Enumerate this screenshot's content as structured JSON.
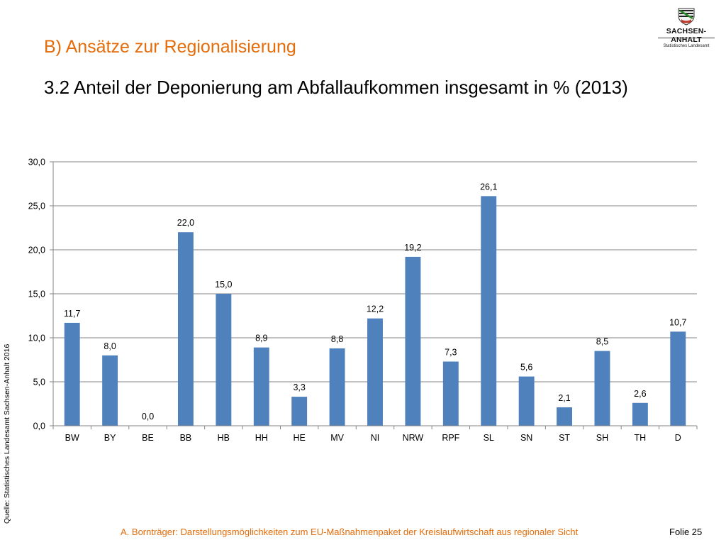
{
  "header": {
    "section_title": "B) Ansätze zur Regionalisierung",
    "slide_title": "3.2 Anteil der Deponierung am Abfallaufkommen insgesamt in % (2013)"
  },
  "logo": {
    "name": "SACHSEN-ANHALT",
    "subtitle": "Statistisches Landesamt",
    "icon": "coat-of-arms-icon"
  },
  "source_note": "Quelle: Statistisches Landesamt Sachsen-Anhalt 2016",
  "footer": {
    "text": "A. Bornträger: Darstellungsmöglichkeiten zum EU-Maßnahmenpaket der Kreislaufwirtschaft aus regionaler Sicht",
    "page": "Folie 25"
  },
  "chart_data": {
    "type": "bar",
    "categories": [
      "BW",
      "BY",
      "BE",
      "BB",
      "HB",
      "HH",
      "HE",
      "MV",
      "NI",
      "NRW",
      "RPF",
      "SL",
      "SN",
      "ST",
      "SH",
      "TH",
      "D"
    ],
    "values": [
      11.7,
      8.0,
      0.0,
      22.0,
      15.0,
      8.9,
      3.3,
      8.8,
      12.2,
      19.2,
      7.3,
      26.1,
      5.6,
      2.1,
      8.5,
      2.6,
      10.7
    ],
    "value_labels": [
      "11,7",
      "8,0",
      "0,0",
      "22,0",
      "15,0",
      "8,9",
      "3,3",
      "8,8",
      "12,2",
      "19,2",
      "7,3",
      "26,1",
      "5,6",
      "2,1",
      "8,5",
      "2,6",
      "10,7"
    ],
    "ylim": [
      0,
      30
    ],
    "y_ticks": [
      0,
      5,
      10,
      15,
      20,
      25,
      30
    ],
    "y_tick_labels": [
      "0,0",
      "5,0",
      "10,0",
      "15,0",
      "20,0",
      "25,0",
      "30,0"
    ],
    "grid": true,
    "legend": false,
    "colors": {
      "bar": "#4f81bd",
      "grid": "#868686"
    }
  }
}
